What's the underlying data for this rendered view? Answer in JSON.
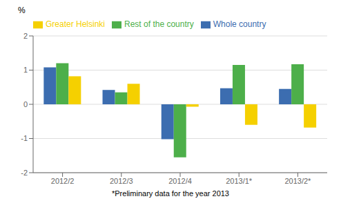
{
  "chart_data": {
    "type": "bar",
    "categories": [
      "2012/2",
      "2012/3",
      "2012/4",
      "2013/1*",
      "2013/2*"
    ],
    "series": [
      {
        "name": "Whole country",
        "color": "#3C6DB0",
        "values": [
          1.08,
          0.42,
          -1.02,
          0.47,
          0.45
        ]
      },
      {
        "name": "Rest of the country",
        "color": "#4DAF4A",
        "values": [
          1.2,
          0.35,
          -1.55,
          1.15,
          1.17
        ]
      },
      {
        "name": "Greater Helsinki",
        "color": "#F5D000",
        "values": [
          0.82,
          0.6,
          -0.07,
          -0.6,
          -0.68
        ]
      }
    ],
    "ylabel": "%",
    "annotations": [
      "*Preliminary data for the year 2013"
    ],
    "ylim": [
      -2,
      2
    ],
    "yticks": [
      -2,
      -1,
      0,
      1,
      2
    ],
    "grid": true,
    "legend": "upper left"
  }
}
